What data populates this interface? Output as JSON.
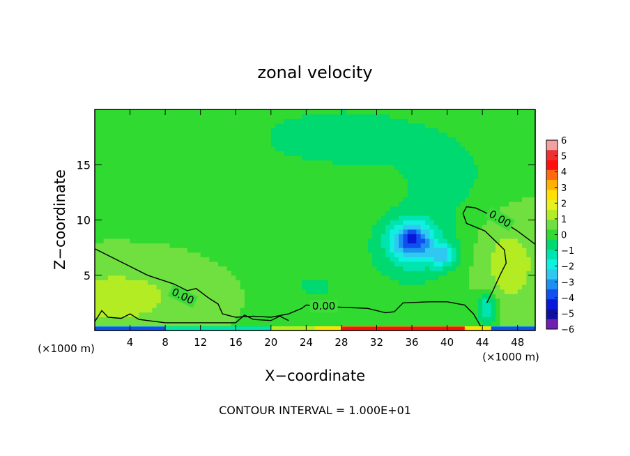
{
  "chart_data": {
    "type": "heatmap",
    "title": "zonal velocity",
    "xlabel": "X−coordinate",
    "ylabel": "Z−coordinate",
    "x_unit_left": "(×1000 m)",
    "x_unit_right": "(×1000 m)",
    "footer": "CONTOUR INTERVAL = 1.000E+01",
    "xlim": [
      0,
      50
    ],
    "ylim": [
      0,
      20
    ],
    "x_ticks": [
      4,
      8,
      12,
      16,
      20,
      24,
      28,
      32,
      36,
      40,
      44,
      48
    ],
    "y_ticks": [
      5,
      10,
      15
    ],
    "colorbar": {
      "ticks": [
        "6",
        "5",
        "4",
        "3",
        "2",
        "1",
        "0",
        "−1",
        "−2",
        "−3",
        "−4",
        "−5",
        "−6"
      ],
      "colors": [
        "#f2a0a0",
        "#ee3030",
        "#ff1010",
        "#ff6a10",
        "#ffb000",
        "#ffe000",
        "#e8f020",
        "#b4ec24",
        "#70e040",
        "#30da30",
        "#00d870",
        "#00e4b0",
        "#10f0e0",
        "#30c8f0",
        "#1a90f0",
        "#1050f0",
        "#0818d8",
        "#1010a0",
        "#7020b0"
      ]
    },
    "contour_labels": [
      "0.00",
      "0.00",
      "0.00"
    ],
    "background_value": 0.3,
    "features": [
      {
        "name": "negative core",
        "x": 36.0,
        "z": 8.2,
        "value": -3.2,
        "sx": 2.2,
        "sz": 1.5
      },
      {
        "name": "negative core east",
        "x": 39.5,
        "z": 6.8,
        "value": -2.0,
        "sx": 1.6,
        "sz": 1.0
      },
      {
        "name": "negative region",
        "x": 36.0,
        "z": 7.5,
        "value": -1.5,
        "sx": 5.0,
        "sz": 3.5
      },
      {
        "name": "upper negative band",
        "x": 28.0,
        "z": 17.5,
        "value": -1.2,
        "sx": 10.0,
        "sz": 2.8
      },
      {
        "name": "upper east negative",
        "x": 40.0,
        "z": 14.0,
        "value": -0.8,
        "sx": 6.0,
        "sz": 4.0
      },
      {
        "name": "lower west positive",
        "x": 2.5,
        "z": 3.0,
        "value": 1.1,
        "sx": 7.0,
        "sz": 2.5
      },
      {
        "name": "east positive lobe",
        "x": 47.0,
        "z": 6.0,
        "value": 1.0,
        "sx": 3.5,
        "sz": 4.0
      },
      {
        "name": "lower central negative",
        "x": 25.0,
        "z": 4.0,
        "value": -0.8,
        "sx": 3.0,
        "sz": 1.5
      },
      {
        "name": "near-surface negative",
        "x": 44.5,
        "z": 2.0,
        "value": -2.0,
        "sx": 1.2,
        "sz": 1.5
      }
    ],
    "surface_layer": [
      {
        "x0": 0,
        "x1": 8,
        "value": -4.0
      },
      {
        "x0": 8,
        "x1": 20,
        "value": -1.5
      },
      {
        "x0": 20,
        "x1": 25,
        "value": 1.5
      },
      {
        "x0": 25,
        "x1": 28,
        "value": 2.5
      },
      {
        "x0": 28,
        "x1": 42,
        "value": 4.5
      },
      {
        "x0": 42,
        "x1": 45,
        "value": 2.5
      },
      {
        "x0": 45,
        "x1": 50,
        "value": -4.0
      }
    ]
  }
}
